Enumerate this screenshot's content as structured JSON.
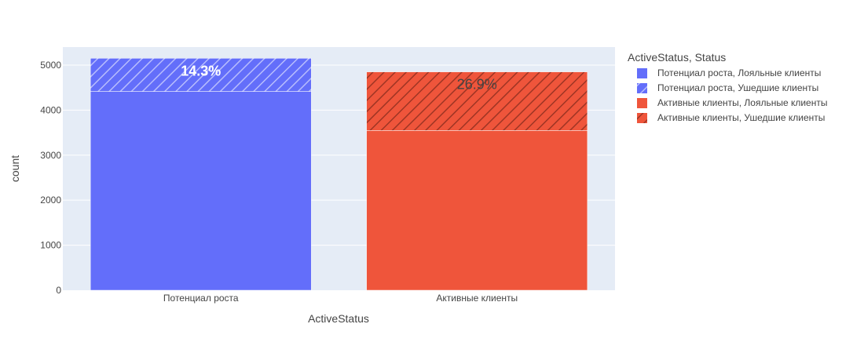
{
  "chart_data": {
    "type": "bar",
    "barmode": "stack",
    "categories": [
      "Потенциал роста",
      "Активные клиенты"
    ],
    "xlabel": "ActiveStatus",
    "ylabel": "count",
    "ylim": [
      0,
      5400
    ],
    "yticks": [
      0,
      1000,
      2000,
      3000,
      4000,
      5000
    ],
    "grid": true,
    "legend_title": "ActiveStatus, Status",
    "legend_position": "top-right",
    "series": [
      {
        "name": "Потенциал роста, Лояльные клиенты",
        "category": "Потенциал роста",
        "value": 4416,
        "color": "#636efa",
        "pattern": "none"
      },
      {
        "name": "Потенциал роста, Ушедшие клиенты",
        "category": "Потенциал роста",
        "value": 735,
        "color": "#636efa",
        "pattern": "hatch"
      },
      {
        "name": "Активные клиенты, Лояльные клиенты",
        "category": "Активные клиенты",
        "value": 3547,
        "color": "#ef553b",
        "pattern": "none"
      },
      {
        "name": "Активные клиенты, Ушедшие клиенты",
        "category": "Активные клиенты",
        "value": 1302,
        "color": "#ef553b",
        "pattern": "hatch"
      }
    ],
    "annotations": [
      {
        "category": "Потенциал роста",
        "text": "14.3%",
        "color": "#ffffff",
        "bold": true
      },
      {
        "category": "Активные клиенты",
        "text": "26.9%",
        "color": "#444444",
        "bold": false
      }
    ]
  }
}
